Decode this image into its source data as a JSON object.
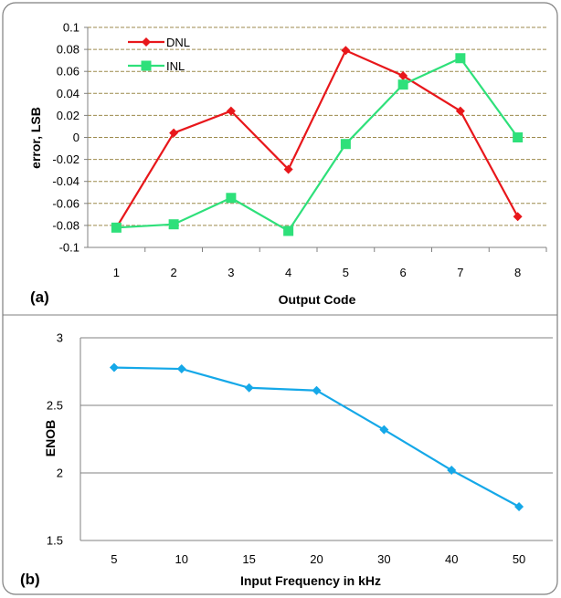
{
  "chart_data": [
    {
      "type": "line",
      "panel_label": "(a)",
      "categories": [
        "1",
        "2",
        "3",
        "4",
        "5",
        "6",
        "7",
        "8"
      ],
      "series": [
        {
          "name": "DNL",
          "values": [
            -0.082,
            0.004,
            0.024,
            -0.029,
            0.079,
            0.056,
            0.024,
            -0.072
          ],
          "color": "#e8171b",
          "marker": "diamond"
        },
        {
          "name": "INL",
          "values": [
            -0.082,
            -0.079,
            -0.055,
            -0.085,
            -0.006,
            0.048,
            0.072,
            0.0
          ],
          "color": "#2ee07a",
          "marker": "square"
        }
      ],
      "xlabel": "Output Code",
      "ylabel": "error, LSB",
      "ylim": [
        -0.1,
        0.1
      ],
      "yticks": [
        "0.1",
        "0.08",
        "0.06",
        "0.04",
        "0.02",
        "0",
        "-0.02",
        "-0.04",
        "-0.06",
        "-0.08",
        "-0.1"
      ],
      "grid": "horizontal dashed",
      "legend": "top-left"
    },
    {
      "type": "line",
      "panel_label": "(b)",
      "categories": [
        "5",
        "10",
        "15",
        "20",
        "30",
        "40",
        "50"
      ],
      "series": [
        {
          "values": [
            2.78,
            2.77,
            2.63,
            2.61,
            2.32,
            2.02,
            1.75
          ],
          "color": "#15a8e8",
          "marker": "diamond"
        }
      ],
      "xlabel": "Input Frequency in kHz",
      "ylabel": "ENOB",
      "ylim": [
        1.5,
        3
      ],
      "yticks": [
        "3",
        "2.5",
        "2",
        "1.5"
      ],
      "grid": "horizontal solid"
    }
  ]
}
